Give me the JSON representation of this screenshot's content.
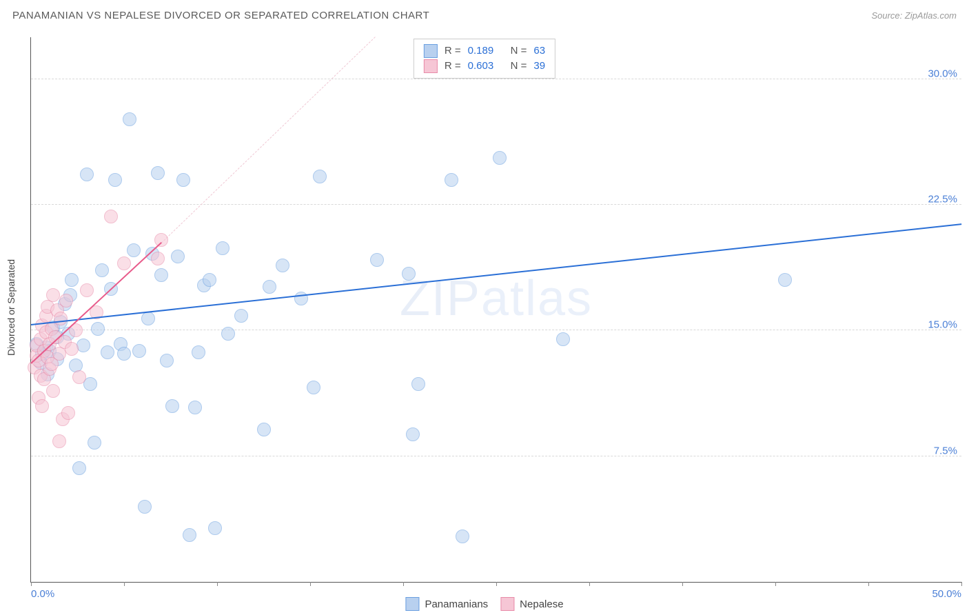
{
  "title": "PANAMANIAN VS NEPALESE DIVORCED OR SEPARATED CORRELATION CHART",
  "source": "Source: ZipAtlas.com",
  "y_axis_label": "Divorced or Separated",
  "watermark": "ZIPatlas",
  "chart": {
    "type": "scatter",
    "xlim": [
      0,
      50
    ],
    "ylim": [
      0,
      32.5
    ],
    "background_color": "#ffffff",
    "grid_color": "#d8d8d8",
    "grid_style": "dashed",
    "axis_color": "#555555",
    "x_ticks": [
      0,
      5,
      10,
      15,
      20,
      25,
      30,
      35,
      40,
      45,
      50
    ],
    "x_tick_labels": {
      "0": "0.0%",
      "50": "50.0%"
    },
    "y_ticks": [
      7.5,
      15.0,
      22.5,
      30.0
    ],
    "y_tick_labels": [
      "7.5%",
      "15.0%",
      "22.5%",
      "30.0%"
    ],
    "tick_label_color": "#4a7fd6",
    "tick_fontsize": 15,
    "marker_radius": 9,
    "marker_opacity": 0.55,
    "series": [
      {
        "name": "Panamanians",
        "color_fill": "#b8d0ef",
        "color_stroke": "#6a9fe0",
        "R": 0.189,
        "N": 63,
        "regression": {
          "x1": 0,
          "y1": 15.3,
          "x2": 50,
          "y2": 21.3,
          "color": "#2a6fd6",
          "width": 2.5
        },
        "points": [
          [
            0.3,
            14.2
          ],
          [
            0.5,
            13.1
          ],
          [
            0.6,
            13.6
          ],
          [
            0.8,
            14.0
          ],
          [
            0.9,
            12.4
          ],
          [
            1.0,
            13.8
          ],
          [
            1.2,
            15.2
          ],
          [
            1.4,
            13.3
          ],
          [
            1.6,
            15.5
          ],
          [
            1.8,
            16.6
          ],
          [
            2.0,
            14.8
          ],
          [
            2.2,
            18.0
          ],
          [
            2.4,
            12.9
          ],
          [
            2.6,
            6.8
          ],
          [
            2.8,
            14.1
          ],
          [
            3.0,
            24.3
          ],
          [
            3.2,
            11.8
          ],
          [
            3.4,
            8.3
          ],
          [
            3.6,
            15.1
          ],
          [
            3.8,
            18.6
          ],
          [
            4.1,
            13.7
          ],
          [
            4.3,
            17.5
          ],
          [
            4.5,
            24.0
          ],
          [
            4.8,
            14.2
          ],
          [
            5.0,
            13.6
          ],
          [
            5.3,
            27.6
          ],
          [
            5.5,
            19.8
          ],
          [
            5.8,
            13.8
          ],
          [
            6.1,
            4.5
          ],
          [
            6.3,
            15.7
          ],
          [
            6.5,
            19.6
          ],
          [
            6.8,
            24.4
          ],
          [
            7.0,
            18.3
          ],
          [
            7.3,
            13.2
          ],
          [
            7.6,
            10.5
          ],
          [
            7.9,
            19.4
          ],
          [
            8.2,
            24.0
          ],
          [
            8.5,
            2.8
          ],
          [
            8.8,
            10.4
          ],
          [
            9.0,
            13.7
          ],
          [
            9.3,
            17.7
          ],
          [
            9.6,
            18.0
          ],
          [
            9.9,
            3.2
          ],
          [
            10.3,
            19.9
          ],
          [
            10.6,
            14.8
          ],
          [
            11.3,
            15.9
          ],
          [
            12.5,
            9.1
          ],
          [
            12.8,
            17.6
          ],
          [
            13.5,
            18.9
          ],
          [
            14.5,
            16.9
          ],
          [
            15.2,
            11.6
          ],
          [
            15.5,
            24.2
          ],
          [
            18.6,
            19.2
          ],
          [
            20.3,
            18.4
          ],
          [
            20.5,
            8.8
          ],
          [
            20.8,
            11.8
          ],
          [
            22.6,
            24.0
          ],
          [
            23.2,
            2.7
          ],
          [
            25.2,
            25.3
          ],
          [
            28.6,
            14.5
          ],
          [
            40.5,
            18.0
          ],
          [
            1.4,
            14.6
          ],
          [
            2.1,
            17.1
          ]
        ]
      },
      {
        "name": "Nepalese",
        "color_fill": "#f6c6d5",
        "color_stroke": "#e88aa8",
        "R": 0.603,
        "N": 39,
        "regression": {
          "x1": 0,
          "y1": 13.0,
          "x2": 7.0,
          "y2": 20.2,
          "color": "#e85a8a",
          "width": 2.5
        },
        "dashed_extension": {
          "x1": 7.0,
          "y1": 20.2,
          "x2": 18.5,
          "y2": 32.5,
          "color": "#f0c8d4"
        },
        "points": [
          [
            0.2,
            12.8
          ],
          [
            0.3,
            13.5
          ],
          [
            0.3,
            14.1
          ],
          [
            0.4,
            11.0
          ],
          [
            0.4,
            13.2
          ],
          [
            0.5,
            12.3
          ],
          [
            0.5,
            14.5
          ],
          [
            0.6,
            10.5
          ],
          [
            0.6,
            15.3
          ],
          [
            0.7,
            13.8
          ],
          [
            0.7,
            12.1
          ],
          [
            0.8,
            14.9
          ],
          [
            0.8,
            15.9
          ],
          [
            0.9,
            13.4
          ],
          [
            0.9,
            16.4
          ],
          [
            1.0,
            12.7
          ],
          [
            1.0,
            14.2
          ],
          [
            1.1,
            15.1
          ],
          [
            1.1,
            13.0
          ],
          [
            1.2,
            17.1
          ],
          [
            1.2,
            11.4
          ],
          [
            1.3,
            14.6
          ],
          [
            1.4,
            16.2
          ],
          [
            1.5,
            13.6
          ],
          [
            1.5,
            8.4
          ],
          [
            1.6,
            15.7
          ],
          [
            1.7,
            9.7
          ],
          [
            1.8,
            14.3
          ],
          [
            1.9,
            16.8
          ],
          [
            2.0,
            10.1
          ],
          [
            2.2,
            13.9
          ],
          [
            2.4,
            15.0
          ],
          [
            2.6,
            12.2
          ],
          [
            3.0,
            17.4
          ],
          [
            3.5,
            16.1
          ],
          [
            4.3,
            21.8
          ],
          [
            5.0,
            19.0
          ],
          [
            6.8,
            19.3
          ],
          [
            7.0,
            20.4
          ]
        ]
      }
    ]
  },
  "legend_top": [
    {
      "swatch_fill": "#b8d0ef",
      "swatch_stroke": "#6a9fe0",
      "R": "0.189",
      "N": "63"
    },
    {
      "swatch_fill": "#f6c6d5",
      "swatch_stroke": "#e88aa8",
      "R": "0.603",
      "N": "39"
    }
  ],
  "legend_bottom": [
    {
      "swatch_fill": "#b8d0ef",
      "swatch_stroke": "#6a9fe0",
      "label": "Panamanians"
    },
    {
      "swatch_fill": "#f6c6d5",
      "swatch_stroke": "#e88aa8",
      "label": "Nepalese"
    }
  ]
}
